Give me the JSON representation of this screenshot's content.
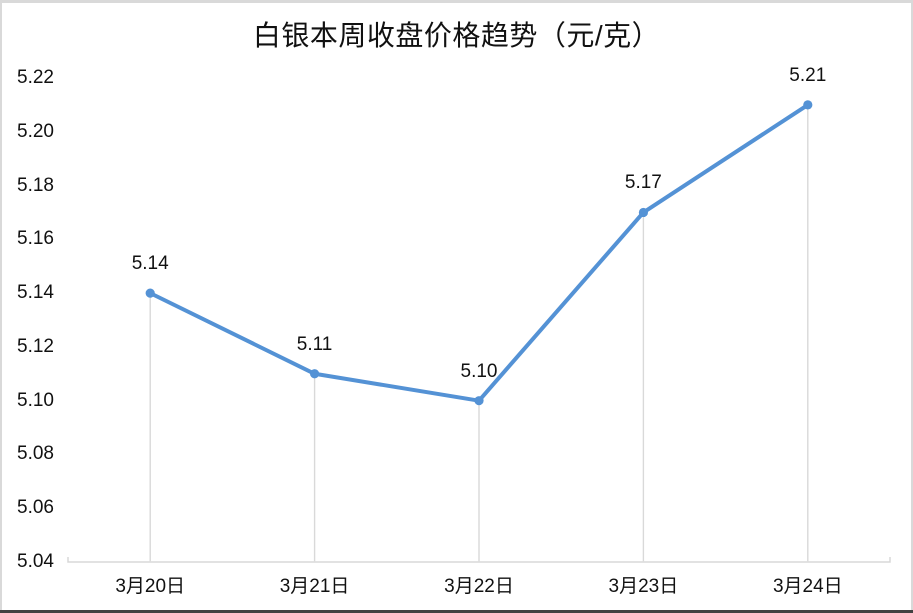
{
  "chart_data": {
    "type": "line",
    "title": "白银本周收盘价格趋势（元/克）",
    "categories": [
      "3月20日",
      "3月21日",
      "3月22日",
      "3月23日",
      "3月24日"
    ],
    "values": [
      5.14,
      5.11,
      5.1,
      5.17,
      5.21
    ],
    "data_labels": [
      "5.14",
      "5.11",
      "5.10",
      "5.17",
      "5.21"
    ],
    "y_tick_labels": [
      "5.22",
      "5.20",
      "5.18",
      "5.16",
      "5.14",
      "5.12",
      "5.10",
      "5.08",
      "5.06",
      "5.04"
    ],
    "ylim": [
      5.04,
      5.22
    ],
    "y_tick_step": 0.02,
    "xlabel": "",
    "ylabel": "",
    "grid": false,
    "legend": "none",
    "marker": "circle",
    "drop_lines": true
  },
  "colors": {
    "line": "#5492d5",
    "marker": "#5492d5",
    "drop_line": "#d9d9d9",
    "axis_line": "#d8d8d8",
    "text": "#111111",
    "background": "#ffffff",
    "frame_light": "#d9d9d9",
    "frame_dark": "#414141"
  }
}
